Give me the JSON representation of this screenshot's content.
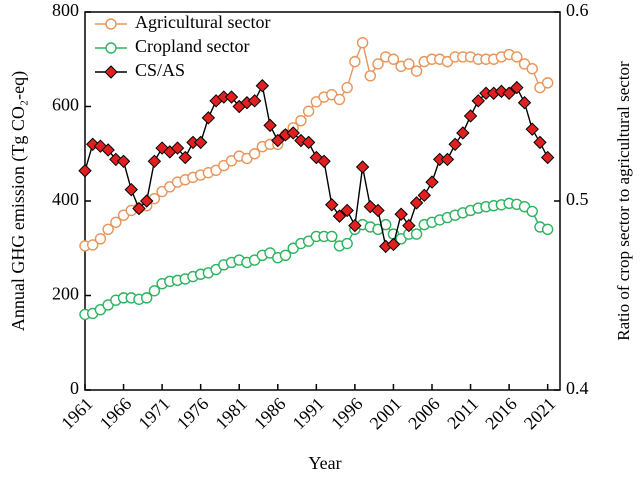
{
  "chart_data": {
    "type": "line",
    "x_label": "Year",
    "y_label": "Annual GHG emission (Tg CO₂-eq)",
    "y2_label": "Ratio of crop sector to agricultural sector",
    "x": [
      1961,
      1962,
      1963,
      1964,
      1965,
      1966,
      1967,
      1968,
      1969,
      1970,
      1971,
      1972,
      1973,
      1974,
      1975,
      1976,
      1977,
      1978,
      1979,
      1980,
      1981,
      1982,
      1983,
      1984,
      1985,
      1986,
      1987,
      1988,
      1989,
      1990,
      1991,
      1992,
      1993,
      1994,
      1995,
      1996,
      1997,
      1998,
      1999,
      2000,
      2001,
      2002,
      2003,
      2004,
      2005,
      2006,
      2007,
      2008,
      2009,
      2010,
      2011,
      2012,
      2013,
      2014,
      2015,
      2016,
      2017,
      2018,
      2019,
      2020,
      2021
    ],
    "xlim": [
      1961,
      2022.6
    ],
    "xticks": [
      1961,
      1966,
      1971,
      1976,
      1981,
      1986,
      1991,
      1996,
      2001,
      2006,
      2011,
      2016,
      2021
    ],
    "ylim": [
      0,
      800
    ],
    "yticks": [
      0,
      200,
      400,
      600,
      800
    ],
    "y2lim": [
      0.4,
      0.6
    ],
    "y2ticks": [
      0.4,
      0.5,
      0.6
    ],
    "legend": "upper-left",
    "series": [
      {
        "name": "Agricultural sector",
        "color": "#e8955a",
        "marker": "circle",
        "values": [
          305,
          307,
          320,
          340,
          355,
          370,
          380,
          385,
          390,
          405,
          420,
          430,
          440,
          445,
          450,
          455,
          460,
          465,
          475,
          485,
          495,
          490,
          500,
          515,
          520,
          520,
          540,
          555,
          570,
          590,
          610,
          620,
          625,
          615,
          640,
          695,
          735,
          665,
          690,
          705,
          700,
          685,
          690,
          675,
          695,
          700,
          700,
          695,
          705,
          705,
          705,
          700,
          700,
          700,
          705,
          710,
          705,
          690,
          680,
          640,
          650
        ]
      },
      {
        "name": "Cropland sector",
        "color": "#2db35e",
        "marker": "circle",
        "values": [
          160,
          162,
          170,
          180,
          190,
          195,
          195,
          192,
          195,
          210,
          225,
          230,
          232,
          235,
          240,
          245,
          248,
          255,
          265,
          270,
          275,
          270,
          275,
          285,
          290,
          280,
          285,
          300,
          310,
          315,
          325,
          325,
          325,
          305,
          310,
          340,
          350,
          345,
          340,
          350,
          330,
          320,
          330,
          330,
          350,
          355,
          360,
          365,
          370,
          375,
          380,
          385,
          388,
          390,
          392,
          395,
          393,
          388,
          378,
          345,
          340
        ]
      },
      {
        "name": "CS/AS",
        "color": "#e02020",
        "marker": "diamond",
        "axis": "y2",
        "values": [
          0.516,
          0.53,
          0.529,
          0.527,
          0.522,
          0.521,
          0.506,
          0.496,
          0.5,
          0.521,
          0.528,
          0.526,
          0.528,
          0.523,
          0.531,
          0.531,
          0.544,
          0.553,
          0.555,
          0.555,
          0.55,
          0.552,
          0.553,
          0.561,
          0.54,
          0.532,
          0.535,
          0.536,
          0.532,
          0.531,
          0.523,
          0.521,
          0.498,
          0.492,
          0.495,
          0.487,
          0.518,
          0.497,
          0.495,
          0.476,
          0.477,
          0.493,
          0.487,
          0.499,
          0.503,
          0.51,
          0.522,
          0.522,
          0.53,
          0.536,
          0.545,
          0.553,
          0.557,
          0.557,
          0.558,
          0.557,
          0.56,
          0.552,
          0.538,
          0.531,
          0.523
        ]
      }
    ]
  }
}
